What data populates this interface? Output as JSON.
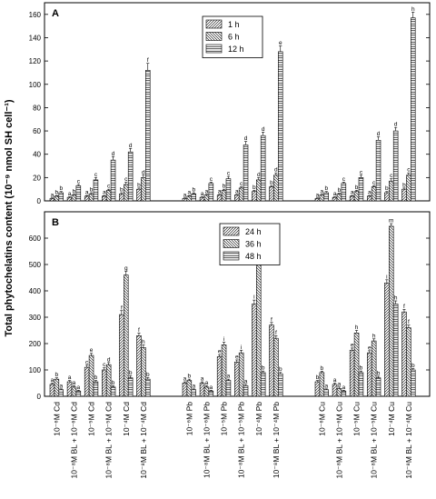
{
  "ylabel": "Total phytochelatins content (10⁻⁹ nmol SH cell⁻¹)",
  "categories": [
    "10⁻⁶M Cd",
    "10⁻⁸M BL + 10⁻⁶M Cd",
    "10⁻⁵M Cd",
    "10⁻⁸M BL + 10⁻⁵M Cd",
    "10⁻⁴M Cd",
    "10⁻⁸M BL + 10⁻⁴M Cd",
    "10⁻⁶M Pb",
    "10⁻⁸M BL + 10⁻⁶M Pb",
    "10⁻⁵M Pb",
    "10⁻⁸M BL + 10⁻⁵M Pb",
    "10⁻⁴M Pb",
    "10⁻⁸M BL + 10⁻⁴M Pb",
    "10⁻⁶M Cu",
    "10⁻⁸M BL + 10⁻⁶M Cu",
    "10⁻⁵M Cu",
    "10⁻⁸M BL + 10⁻⁵M Cu",
    "10⁻⁴M Cu",
    "10⁻⁸M BL + 10⁻⁴M Cu"
  ],
  "chart_data": [
    {
      "panel": "A",
      "type": "bar",
      "ylim": [
        0,
        170
      ],
      "yticks": [
        0,
        20,
        40,
        60,
        80,
        100,
        120,
        140,
        160
      ],
      "legend_position": "top-left",
      "series": [
        {
          "name": "1 h",
          "values": [
            2,
            3,
            4,
            4,
            6,
            10,
            2,
            3,
            5,
            5,
            8,
            12,
            2,
            3,
            4,
            4,
            7,
            10
          ],
          "errors": [
            0.5,
            0.5,
            0.5,
            0.5,
            1,
            1,
            0.5,
            0.5,
            0.5,
            0.5,
            1,
            1,
            0.5,
            0.5,
            0.5,
            0.5,
            1,
            1
          ],
          "letters": [
            "a",
            "a",
            "a",
            "a",
            "b",
            "b",
            "a",
            "a",
            "a",
            "a",
            "b",
            "b",
            "a",
            "a",
            "a",
            "a",
            "b",
            "b"
          ]
        },
        {
          "name": "6 h",
          "values": [
            4,
            5,
            6,
            9,
            14,
            20,
            4,
            5,
            9,
            11,
            18,
            22,
            5,
            6,
            8,
            12,
            17,
            22
          ],
          "errors": [
            0.5,
            0.5,
            1,
            1,
            2,
            2,
            0.5,
            0.5,
            1,
            1,
            2,
            2,
            0.5,
            0.5,
            1,
            1,
            2,
            2
          ],
          "letters": [
            "b",
            "b",
            "b",
            "c",
            "c",
            "d",
            "a",
            "a",
            "b",
            "c",
            "d",
            "d",
            "a",
            "b",
            "b",
            "c",
            "c",
            "c"
          ]
        },
        {
          "name": "12 h",
          "values": [
            7,
            13,
            18,
            35,
            42,
            112,
            6,
            15,
            19,
            48,
            56,
            128,
            7,
            15,
            20,
            52,
            60,
            157
          ],
          "errors": [
            1,
            1,
            2,
            3,
            3,
            6,
            1,
            1,
            2,
            3,
            3,
            5,
            1,
            1,
            2,
            3,
            3,
            5
          ],
          "letters": [
            "b",
            "c",
            "c",
            "d",
            "d",
            "f",
            "b",
            "c",
            "c",
            "d",
            "d",
            "e",
            "b",
            "c",
            "c",
            "d",
            "d",
            "h"
          ]
        }
      ]
    },
    {
      "panel": "B",
      "type": "bar",
      "ylim": [
        0,
        700
      ],
      "yticks": [
        0,
        100,
        200,
        300,
        400,
        500,
        600
      ],
      "legend_position": "top-center",
      "series": [
        {
          "name": "24 h",
          "values": [
            45,
            55,
            110,
            100,
            310,
            230,
            50,
            50,
            150,
            130,
            350,
            270,
            55,
            45,
            175,
            165,
            430,
            320
          ],
          "errors": [
            5,
            5,
            8,
            8,
            15,
            10,
            5,
            5,
            8,
            8,
            15,
            10,
            5,
            5,
            8,
            8,
            12,
            10
          ],
          "letters": [
            "a",
            "a",
            "c",
            "c",
            "f",
            "f",
            "a",
            "a",
            "e",
            "e",
            "i",
            "f",
            "b",
            "a",
            "e",
            "e",
            "i",
            "f"
          ]
        },
        {
          "name": "36 h",
          "values": [
            65,
            35,
            155,
            120,
            460,
            185,
            60,
            35,
            195,
            165,
            525,
            220,
            90,
            30,
            240,
            210,
            645,
            260
          ],
          "errors": [
            5,
            5,
            8,
            8,
            15,
            10,
            5,
            5,
            10,
            10,
            12,
            10,
            5,
            5,
            10,
            8,
            10,
            10
          ],
          "letters": [
            "b",
            "a",
            "e",
            "d",
            "g",
            "h",
            "b",
            "a",
            "i",
            "i",
            "k",
            "f",
            "b",
            "a",
            "h",
            "h",
            "m",
            "f"
          ]
        },
        {
          "name": "48 h",
          "values": [
            25,
            20,
            55,
            35,
            70,
            65,
            25,
            20,
            60,
            40,
            90,
            85,
            25,
            20,
            90,
            70,
            350,
            100
          ],
          "errors": [
            3,
            3,
            5,
            5,
            8,
            6,
            3,
            3,
            5,
            5,
            6,
            6,
            3,
            3,
            6,
            6,
            12,
            6
          ],
          "letters": [
            "a",
            "a",
            "b",
            "b",
            "b",
            "b",
            "a",
            "a",
            "a",
            "a",
            "b",
            "b",
            "a",
            "a",
            "b",
            "b",
            "h",
            "b"
          ]
        }
      ]
    }
  ]
}
